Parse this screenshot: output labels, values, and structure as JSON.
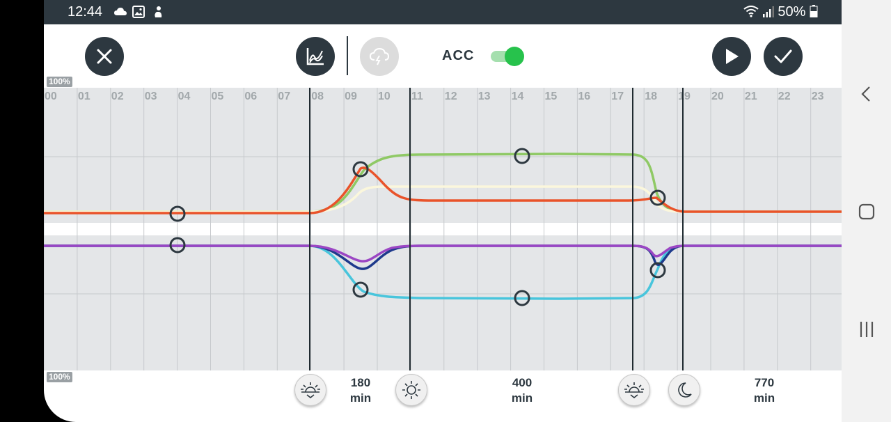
{
  "status_bar": {
    "time": "12:44",
    "left_icons": [
      "cloud-icon",
      "image-icon",
      "notification-icon"
    ],
    "right_icons": [
      "wifi-icon",
      "signal-icon",
      "battery-icon"
    ],
    "battery": "50%"
  },
  "toolbar": {
    "close_icon": "close-icon",
    "chart_icon": "chart-icon",
    "weather_icon": "storm-cloud-icon",
    "acc_label": "ACC",
    "acc_enabled": true,
    "play_icon": "play-icon",
    "confirm_icon": "check-icon"
  },
  "graph": {
    "top_label": "100%",
    "bottom_label": "100%",
    "hours": [
      "00",
      "01",
      "02",
      "03",
      "04",
      "05",
      "06",
      "07",
      "08",
      "09",
      "10",
      "11",
      "12",
      "13",
      "14",
      "15",
      "16",
      "17",
      "18",
      "19",
      "20",
      "21",
      "22",
      "23"
    ],
    "series_colors": {
      "green": "#8fc965",
      "orange": "#e9532a",
      "cream": "#fbf7dc",
      "purple": "#9b46c4",
      "navy": "#1e3a8c",
      "cyan": "#48c5dc"
    }
  },
  "events": [
    {
      "icon": "sunrise-icon"
    },
    {
      "icon": "sun-icon"
    },
    {
      "icon": "sunset-icon"
    },
    {
      "icon": "moon-icon"
    }
  ],
  "durations": [
    {
      "value": "180",
      "unit": "min"
    },
    {
      "value": "400",
      "unit": "min"
    },
    {
      "value": "770",
      "unit": "min"
    }
  ],
  "nav": {
    "back_icon": "back-icon",
    "home_icon": "home-icon",
    "recents_icon": "recents-icon"
  }
}
